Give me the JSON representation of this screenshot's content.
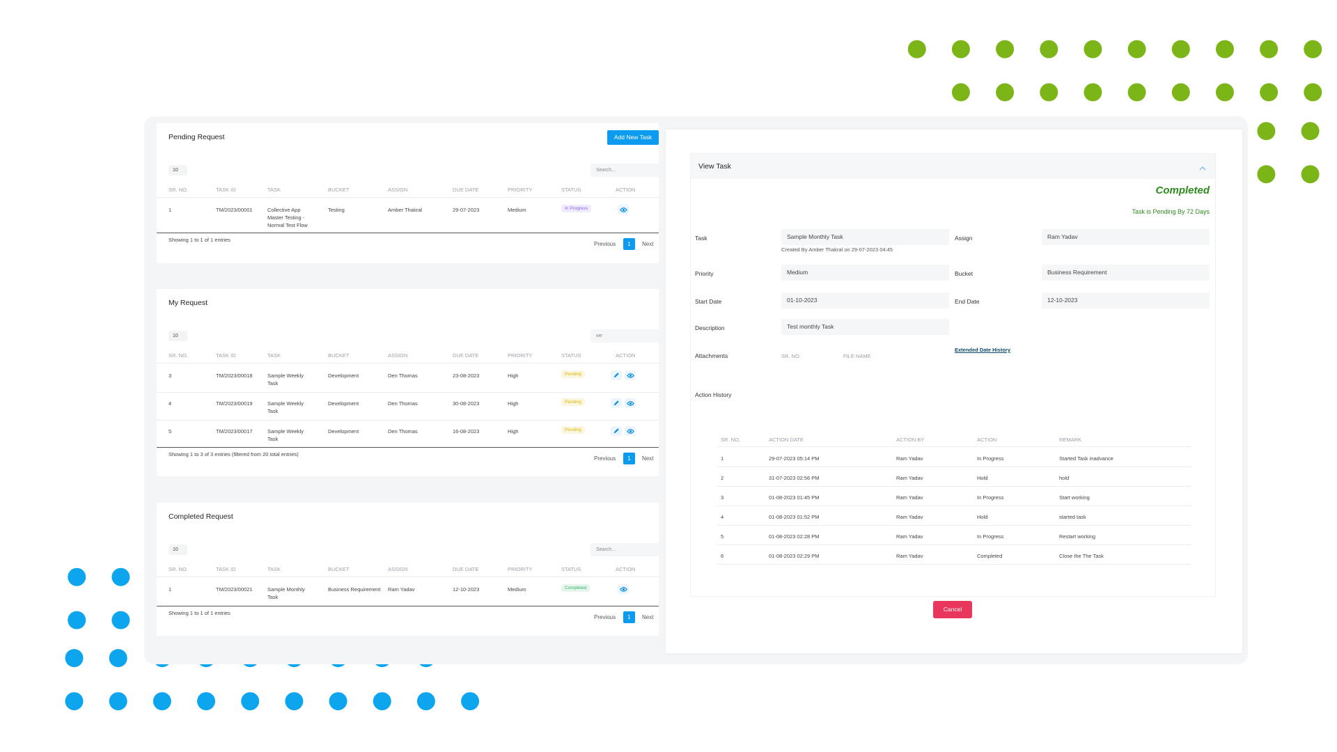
{
  "pending": {
    "title": "Pending Request",
    "add_button": "Add New Task",
    "length": "10",
    "search": "Search...",
    "columns": [
      "SR. NO.",
      "TASK ID",
      "TASK",
      "BUCKET",
      "ASSIGN",
      "DUE DATE",
      "PRIORITY",
      "STATUS",
      "ACTION"
    ],
    "rows": [
      [
        "1",
        "TM/2023/00001",
        "Collective App Master Testing - Normal Test Flow",
        "Testing",
        "Amber Thakral",
        "29-07-2023",
        "Medium",
        "In Progress"
      ]
    ],
    "status_colors": [
      "#8b5cf6"
    ],
    "info": "Showing 1 to 1 of 1 entries",
    "pager": [
      "Previous",
      "1",
      "Next"
    ]
  },
  "my": {
    "title": "My Request",
    "length": "10",
    "search": "we",
    "columns": [
      "SR. NO.",
      "TASK ID",
      "TASK",
      "BUCKET",
      "ASSIGN",
      "DUE DATE",
      "PRIORITY",
      "STATUS",
      "ACTION"
    ],
    "rows": [
      [
        "3",
        "TM/2023/00018",
        "Sample Weekly Task",
        "Development",
        "Den Thomas",
        "23-08-2023",
        "High",
        "Pending"
      ],
      [
        "4",
        "TM/2023/00019",
        "Sample Weekly Task",
        "Development",
        "Den Thomas",
        "30-08-2023",
        "High",
        "Pending"
      ],
      [
        "5",
        "TM/2023/00017",
        "Sample Weekly Task",
        "Development",
        "Den Thomas",
        "16-08-2023",
        "High",
        "Pending"
      ]
    ],
    "status_colors": [
      "#e0b400",
      "#e0b400",
      "#e0b400"
    ],
    "info": "Showing 1 to 3 of 3 entries (filtered from 20 total entries)",
    "pager": [
      "Previous",
      "1",
      "Next"
    ]
  },
  "completed": {
    "title": "Completed Request",
    "length": "10",
    "search": "Search...",
    "columns": [
      "SR. NO.",
      "TASK ID",
      "TASK",
      "BUCKET",
      "ASSIGN",
      "DUE DATE",
      "PRIORITY",
      "STATUS",
      "ACTION"
    ],
    "rows": [
      [
        "1",
        "TM/2023/00021",
        "Sample Monthly Task",
        "Business Requirement",
        "Ram Yadav",
        "12-10-2023",
        "Medium",
        "Completed"
      ]
    ],
    "status_colors": [
      "#34b36b"
    ],
    "info": "Showing 1 to 1 of 1 entries",
    "pager": [
      "Previous",
      "1",
      "Next"
    ]
  },
  "view_task": {
    "title": "View Task",
    "status": "Completed",
    "pending_note": "Task is Pending By 72 Days",
    "fields": [
      {
        "label": "Task",
        "value": "Sample Monthly Task"
      },
      {
        "label": "Assign",
        "value": "Ram Yadav"
      },
      {
        "label": "Priority",
        "value": "Medium"
      },
      {
        "label": "Bucket",
        "value": "Business Requirement"
      },
      {
        "label": "Start Date",
        "value": "01-10-2023"
      },
      {
        "label": "End Date",
        "value": "12-10-2023"
      },
      {
        "label": "Description",
        "value": "Test monthly Task"
      }
    ],
    "created": "Created By Amber Thakral on 29-07-2023 04:45",
    "attachments_label": "Attachments",
    "attachment_columns": [
      "SR. NO.",
      "FILE NAME"
    ],
    "extended_link": "Extended Date History",
    "history_title": "Action History",
    "history_columns": [
      "SR. NO.",
      "ACTION DATE",
      "ACTION BY",
      "ACTION",
      "REMARK"
    ],
    "history_rows": [
      [
        "1",
        "29-07-2023 05:14 PM",
        "Ram Yadav",
        "In Progress",
        "Started Task inadvance"
      ],
      [
        "2",
        "31-07-2023 02:56 PM",
        "Ram Yadav",
        "Hold",
        "hold"
      ],
      [
        "3",
        "01-08-2023 01:45 PM",
        "Ram Yadav",
        "In Progress",
        "Start working"
      ],
      [
        "4",
        "01-08-2023 01:52 PM",
        "Ram Yadav",
        "Hold",
        "started task"
      ],
      [
        "5",
        "01-08-2023 02:28 PM",
        "Ram Yadav",
        "In Progress",
        "Restart working"
      ],
      [
        "6",
        "01-08-2023 02:29 PM",
        "Ram Yadav",
        "Completed",
        "Close the The Task"
      ]
    ],
    "cancel": "Cancel"
  }
}
